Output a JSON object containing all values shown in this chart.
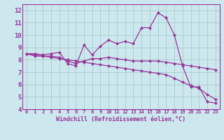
{
  "xlabel": "Windchill (Refroidissement éolien,°C)",
  "xlim": [
    -0.5,
    23.5
  ],
  "ylim": [
    4,
    12.5
  ],
  "xticks": [
    0,
    1,
    2,
    3,
    4,
    5,
    6,
    7,
    8,
    9,
    10,
    11,
    12,
    13,
    14,
    15,
    16,
    17,
    18,
    19,
    20,
    21,
    22,
    23
  ],
  "yticks": [
    4,
    5,
    6,
    7,
    8,
    9,
    10,
    11,
    12
  ],
  "background_color": "#cce8ee",
  "line_color": "#993399",
  "grid_color": "#aacccc",
  "series": [
    [
      8.5,
      8.5,
      8.4,
      8.5,
      8.6,
      7.7,
      7.5,
      9.2,
      8.4,
      9.1,
      9.6,
      9.3,
      9.5,
      9.3,
      10.6,
      10.6,
      11.8,
      11.4,
      10.0,
      7.5,
      5.8,
      5.8,
      4.6,
      4.5
    ],
    [
      8.5,
      8.3,
      8.3,
      8.3,
      8.2,
      7.9,
      7.7,
      7.9,
      8.1,
      8.1,
      8.2,
      8.1,
      8.0,
      7.9,
      7.9,
      7.9,
      7.9,
      7.8,
      7.7,
      7.6,
      7.5,
      7.4,
      7.3,
      7.2
    ],
    [
      8.5,
      8.4,
      8.3,
      8.2,
      8.1,
      8.0,
      7.9,
      7.8,
      7.7,
      7.6,
      7.5,
      7.4,
      7.3,
      7.2,
      7.1,
      7.0,
      6.9,
      6.8,
      6.5,
      6.2,
      5.9,
      5.7,
      5.2,
      4.8
    ]
  ]
}
